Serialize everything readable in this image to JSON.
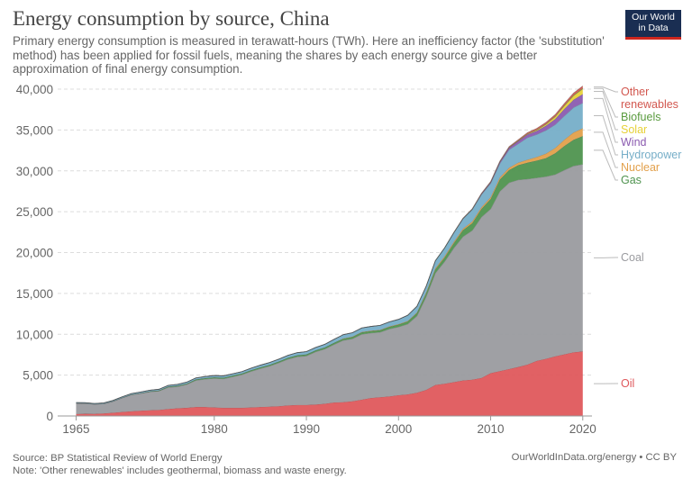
{
  "header": {
    "title": "Energy consumption by source, China",
    "subtitle": "Primary energy consumption is measured in terawatt-hours (TWh). Here an inefficiency factor (the 'substitution' method) has been applied for fossil fuels, meaning the shares by each energy source give a better approximation of final energy consumption.",
    "logo_line1": "Our World",
    "logo_line2": "in Data"
  },
  "footer": {
    "source": "Source: BP Statistical Review of World Energy",
    "note": "Note: 'Other renewables' includes geothermal, biomass and waste energy.",
    "credit": "OurWorldInData.org/energy • CC BY"
  },
  "chart_data": {
    "type": "area",
    "stacked": true,
    "x": [
      1965,
      1966,
      1967,
      1968,
      1969,
      1970,
      1971,
      1972,
      1973,
      1974,
      1975,
      1976,
      1977,
      1978,
      1979,
      1980,
      1981,
      1982,
      1983,
      1984,
      1985,
      1986,
      1987,
      1988,
      1989,
      1990,
      1991,
      1992,
      1993,
      1994,
      1995,
      1996,
      1997,
      1998,
      1999,
      2000,
      2001,
      2002,
      2003,
      2004,
      2005,
      2006,
      2007,
      2008,
      2009,
      2010,
      2011,
      2012,
      2013,
      2014,
      2015,
      2016,
      2017,
      2018,
      2019,
      2020
    ],
    "xlim": [
      1963,
      2021
    ],
    "ylim": [
      0,
      40000
    ],
    "xticks": [
      1965,
      1980,
      1990,
      2000,
      2010,
      2020
    ],
    "yticks": [
      0,
      5000,
      10000,
      15000,
      20000,
      25000,
      30000,
      35000,
      40000
    ],
    "ytick_labels": [
      "0",
      "5,000",
      "10,000",
      "15,000",
      "20,000",
      "25,000",
      "30,000",
      "35,000",
      "40,000"
    ],
    "grid": true,
    "legend_position": "right",
    "series": [
      {
        "name": "Oil",
        "color": "#df585c",
        "values": [
          250,
          280,
          260,
          320,
          400,
          500,
          580,
          650,
          700,
          750,
          850,
          950,
          1000,
          1100,
          1100,
          1050,
          1000,
          1000,
          1000,
          1050,
          1100,
          1150,
          1200,
          1300,
          1350,
          1350,
          1400,
          1500,
          1650,
          1700,
          1800,
          2000,
          2200,
          2300,
          2400,
          2550,
          2650,
          2850,
          3200,
          3800,
          3950,
          4150,
          4350,
          4450,
          4650,
          5250,
          5500,
          5750,
          6000,
          6300,
          6750,
          7000,
          7300,
          7550,
          7800,
          7900
        ]
      },
      {
        "name": "Coal",
        "color": "#9a9b9f",
        "values": [
          1300,
          1250,
          1170,
          1170,
          1380,
          1700,
          2000,
          2100,
          2250,
          2300,
          2650,
          2650,
          2850,
          3250,
          3400,
          3550,
          3550,
          3800,
          4050,
          4400,
          4700,
          4950,
          5300,
          5650,
          5900,
          6000,
          6450,
          6700,
          7100,
          7550,
          7650,
          8000,
          7950,
          7950,
          8250,
          8350,
          8600,
          9400,
          11400,
          13700,
          14950,
          16400,
          17600,
          18250,
          19700,
          20100,
          22000,
          22800,
          22900,
          22700,
          22400,
          22300,
          22250,
          22550,
          22800,
          22900
        ]
      },
      {
        "name": "Gas",
        "color": "#4f934f",
        "values": [
          15,
          15,
          15,
          18,
          20,
          30,
          40,
          50,
          60,
          70,
          90,
          100,
          110,
          120,
          130,
          140,
          140,
          140,
          140,
          150,
          150,
          160,
          160,
          170,
          170,
          180,
          180,
          190,
          200,
          200,
          220,
          230,
          240,
          240,
          260,
          290,
          320,
          350,
          400,
          450,
          500,
          600,
          800,
          900,
          1000,
          1200,
          1450,
          1550,
          1800,
          2000,
          2100,
          2250,
          2600,
          2950,
          3200,
          3450
        ]
      },
      {
        "name": "Nuclear",
        "color": "#e2a04b",
        "values": [
          0,
          0,
          0,
          0,
          0,
          0,
          0,
          0,
          0,
          0,
          0,
          0,
          0,
          0,
          0,
          0,
          0,
          0,
          0,
          0,
          0,
          0,
          0,
          0,
          0,
          0,
          0,
          0,
          10,
          40,
          40,
          40,
          45,
          45,
          50,
          55,
          60,
          70,
          120,
          140,
          150,
          160,
          180,
          200,
          200,
          220,
          250,
          280,
          310,
          370,
          450,
          560,
          650,
          770,
          900,
          950
        ]
      },
      {
        "name": "Hydropower",
        "color": "#76aec8",
        "values": [
          70,
          80,
          80,
          90,
          100,
          110,
          120,
          130,
          140,
          150,
          160,
          170,
          180,
          190,
          200,
          210,
          220,
          230,
          240,
          260,
          270,
          280,
          300,
          310,
          330,
          350,
          360,
          380,
          420,
          460,
          480,
          500,
          520,
          550,
          560,
          580,
          700,
          750,
          750,
          900,
          1000,
          1100,
          1200,
          1450,
          1550,
          1700,
          1700,
          2200,
          2300,
          2700,
          2750,
          2850,
          2850,
          2900,
          3050,
          3100
        ]
      },
      {
        "name": "Wind",
        "color": "#8b5bb0",
        "values": [
          0,
          0,
          0,
          0,
          0,
          0,
          0,
          0,
          0,
          0,
          0,
          0,
          0,
          0,
          0,
          0,
          0,
          0,
          0,
          0,
          0,
          0,
          0,
          0,
          0,
          0,
          0,
          0,
          0,
          0,
          0,
          0,
          0,
          0,
          0,
          0,
          0,
          0,
          0,
          0,
          5,
          10,
          25,
          35,
          70,
          120,
          180,
          250,
          330,
          380,
          440,
          560,
          690,
          860,
          950,
          1100
        ]
      },
      {
        "name": "Solar",
        "color": "#e7d137",
        "values": [
          0,
          0,
          0,
          0,
          0,
          0,
          0,
          0,
          0,
          0,
          0,
          0,
          0,
          0,
          0,
          0,
          0,
          0,
          0,
          0,
          0,
          0,
          0,
          0,
          0,
          0,
          0,
          0,
          0,
          0,
          0,
          0,
          0,
          0,
          0,
          0,
          0,
          0,
          0,
          0,
          0,
          0,
          0,
          0,
          0,
          0,
          5,
          10,
          25,
          50,
          100,
          170,
          280,
          380,
          500,
          640
        ]
      },
      {
        "name": "Biofuels",
        "color": "#5a9b3f",
        "values": [
          0,
          0,
          0,
          0,
          0,
          0,
          0,
          0,
          0,
          0,
          0,
          0,
          0,
          0,
          0,
          0,
          0,
          0,
          0,
          0,
          0,
          0,
          0,
          0,
          0,
          0,
          0,
          0,
          0,
          0,
          0,
          0,
          0,
          0,
          0,
          0,
          0,
          10,
          15,
          20,
          25,
          30,
          35,
          40,
          40,
          40,
          40,
          45,
          50,
          50,
          50,
          55,
          60,
          65,
          70,
          75
        ]
      },
      {
        "name": "Other\nrenewables",
        "color": "#d2574f",
        "values": [
          0,
          0,
          0,
          0,
          0,
          0,
          0,
          0,
          0,
          0,
          0,
          0,
          0,
          0,
          0,
          0,
          0,
          0,
          0,
          0,
          0,
          0,
          0,
          0,
          0,
          0,
          0,
          0,
          0,
          0,
          0,
          0,
          0,
          0,
          0,
          0,
          0,
          0,
          0,
          0,
          0,
          20,
          30,
          40,
          55,
          70,
          80,
          90,
          110,
          130,
          160,
          190,
          210,
          230,
          260,
          280
        ]
      }
    ]
  }
}
